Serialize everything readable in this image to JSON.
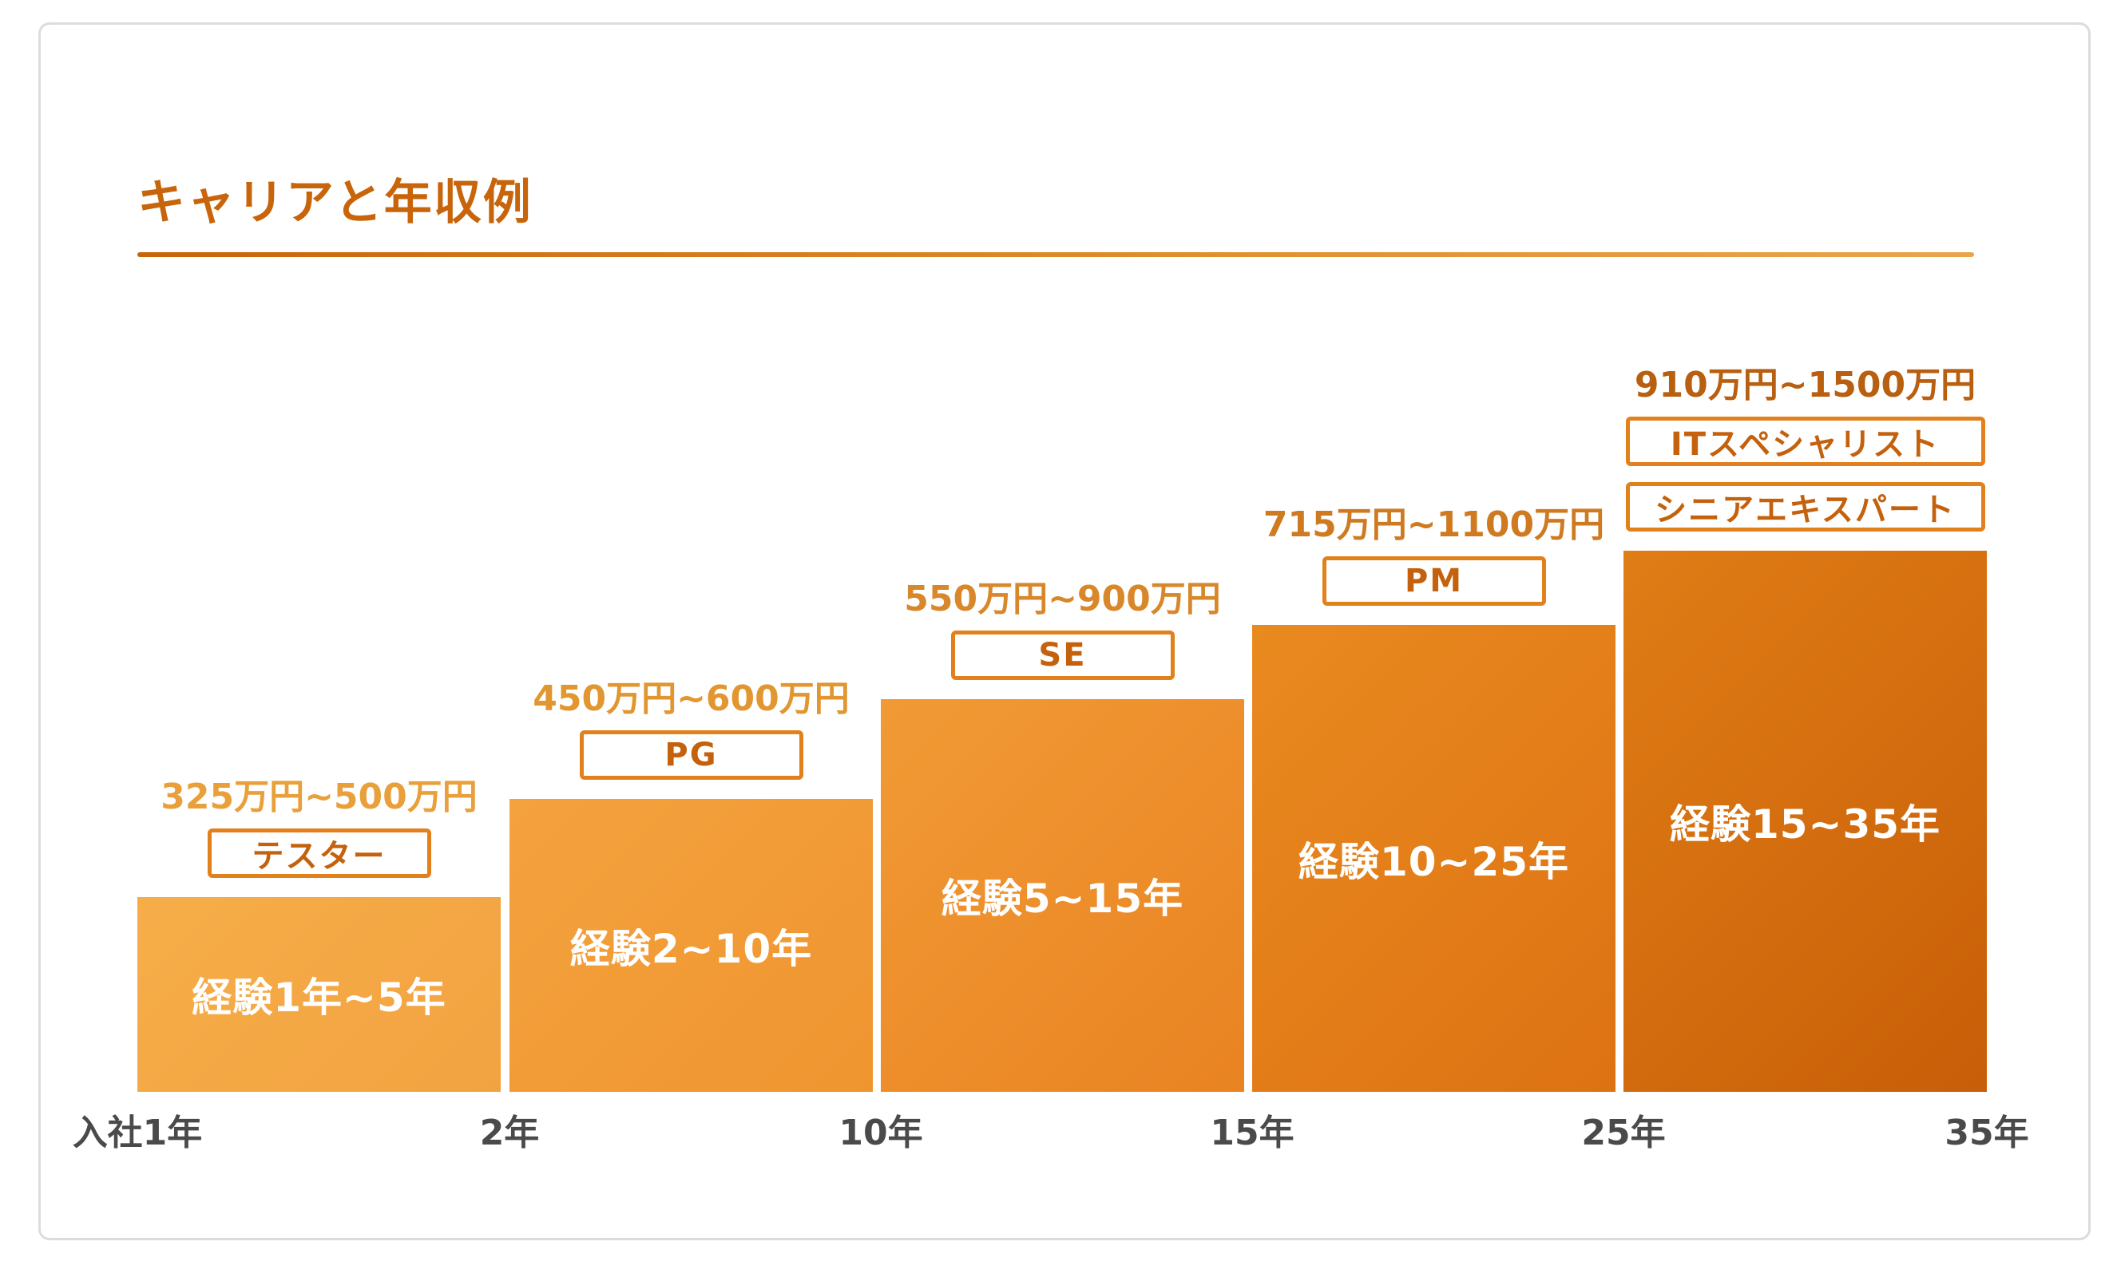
{
  "title": "キャリアと年収例",
  "chart_data": {
    "type": "bar",
    "title": "キャリアと年収例",
    "x_ticks": [
      "入社1年",
      "2年",
      "10年",
      "15年",
      "25年",
      "35年"
    ],
    "bars": [
      {
        "experience": "経験1年~5年",
        "roles": [
          "テスター"
        ],
        "salary": "325万円~500万円",
        "salary_min": 325,
        "salary_max": 500,
        "color_top": "#f6ad48",
        "color_bottom": "#f2a341"
      },
      {
        "experience": "経験2~10年",
        "roles": [
          "PG"
        ],
        "salary": "450万円~600万円",
        "salary_min": 450,
        "salary_max": 600,
        "color_top": "#f4a23e",
        "color_bottom": "#ef9530"
      },
      {
        "experience": "経験5~15年",
        "roles": [
          "SE"
        ],
        "salary": "550万円~900万円",
        "salary_min": 550,
        "salary_max": 900,
        "color_top": "#f19a35",
        "color_bottom": "#e98322"
      },
      {
        "experience": "経験10~25年",
        "roles": [
          "PM"
        ],
        "salary": "715万円~1100万円",
        "salary_min": 715,
        "salary_max": 1100,
        "color_top": "#e98a1f",
        "color_bottom": "#dd7213"
      },
      {
        "experience": "経験15~35年",
        "roles": [
          "ITスペシャリスト",
          "シニアエキスパート"
        ],
        "salary": "910万円~1500万円",
        "salary_min": 910,
        "salary_max": 1500,
        "color_top": "#e07d16",
        "color_bottom": "#c85e08"
      }
    ],
    "salary_colors": [
      "#e9a03a",
      "#e19630",
      "#d8872a",
      "#cf7a20",
      "#b85f10"
    ],
    "ylabel": "",
    "xlabel": ""
  }
}
